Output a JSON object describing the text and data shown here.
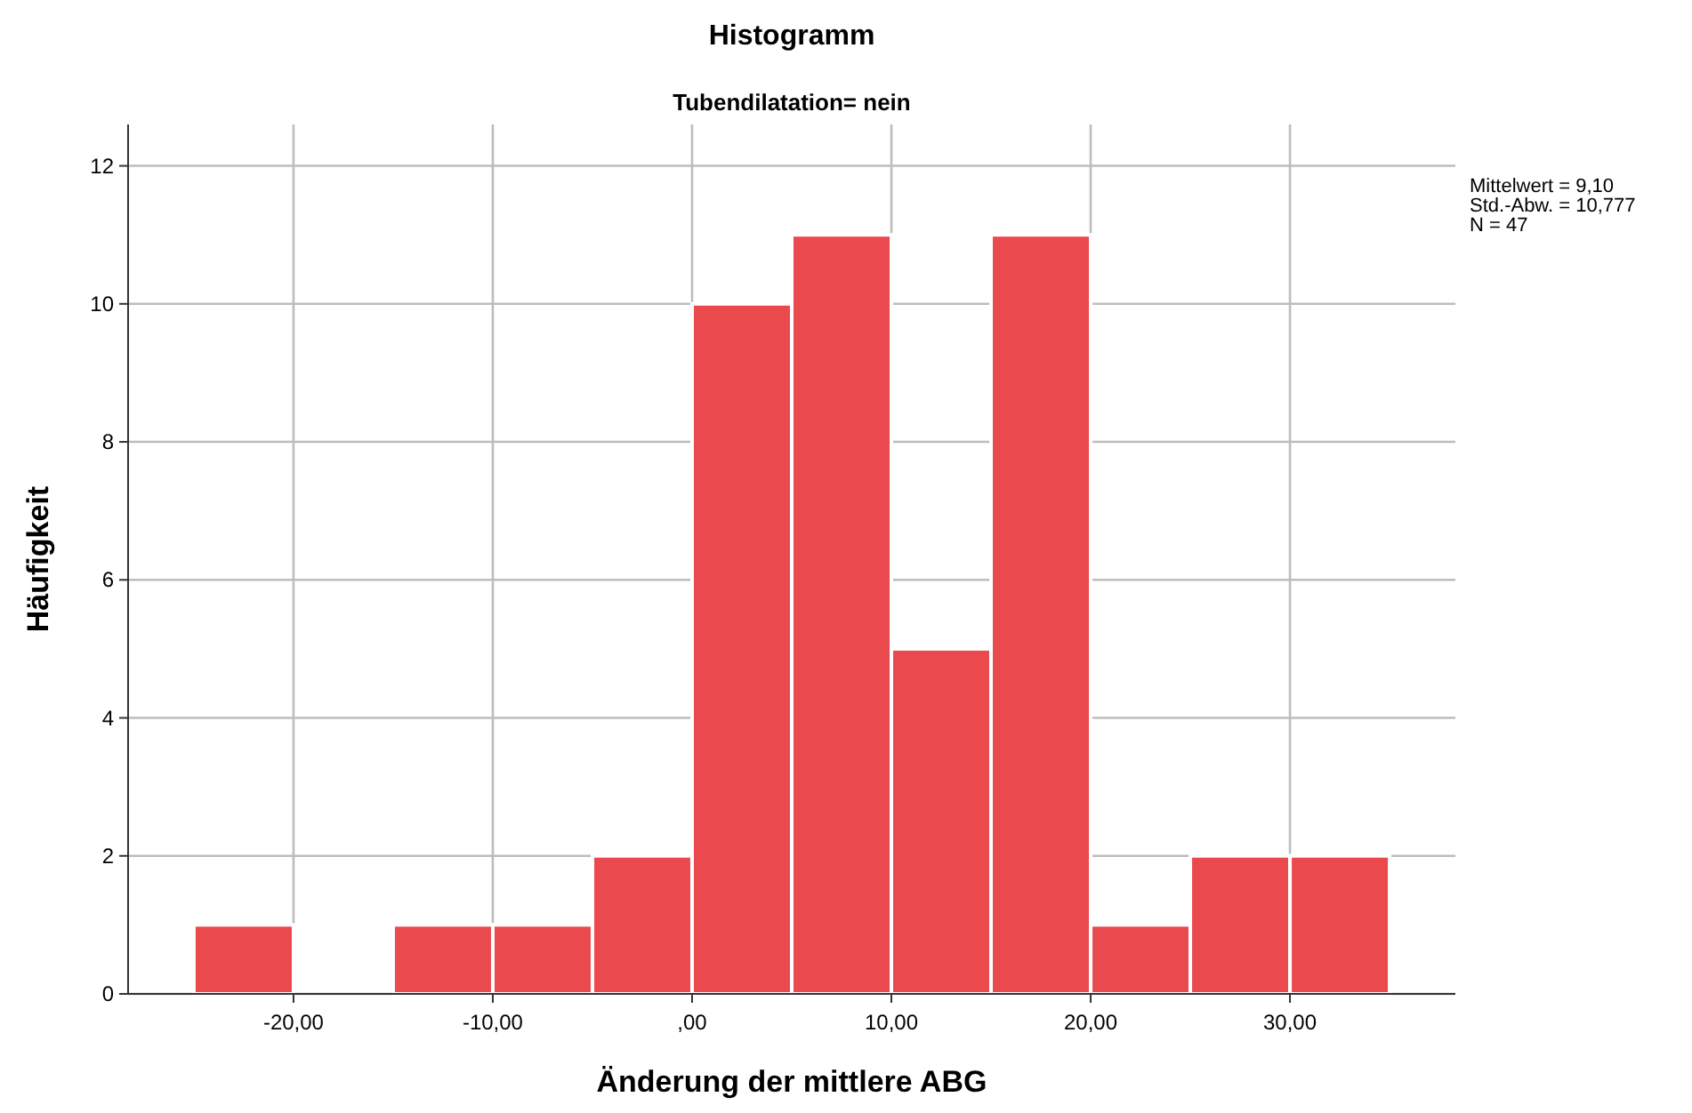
{
  "chart_data": {
    "type": "histogram",
    "title": "Histogramm",
    "subtitle": "Tubendilatation= nein",
    "xlabel": "Änderung der mittlere ABG",
    "ylabel": "Häufigkeit",
    "bins": [
      -25,
      -20,
      -15,
      -10,
      -5,
      0,
      5,
      10,
      15,
      20,
      25,
      30,
      35
    ],
    "values": [
      1,
      0,
      1,
      1,
      2,
      10,
      11,
      5,
      11,
      1,
      2,
      2
    ],
    "color": "#ea4a4d",
    "xlim": [
      -28.3,
      38.3
    ],
    "xticks": [
      {
        "value": -20,
        "label": "-20,00"
      },
      {
        "value": -10,
        "label": "-10,00"
      },
      {
        "value": 0,
        "label": ",00"
      },
      {
        "value": 10,
        "label": "10,00"
      },
      {
        "value": 20,
        "label": "20,00"
      },
      {
        "value": 30,
        "label": "30,00"
      }
    ],
    "ylim": [
      0,
      12.6
    ],
    "yticks": [
      0,
      2,
      4,
      6,
      8,
      10,
      12
    ],
    "grid": true,
    "annotations": [
      "Mittelwert = 9,10",
      "Std.-Abw. = 10,777",
      "N = 47"
    ]
  }
}
